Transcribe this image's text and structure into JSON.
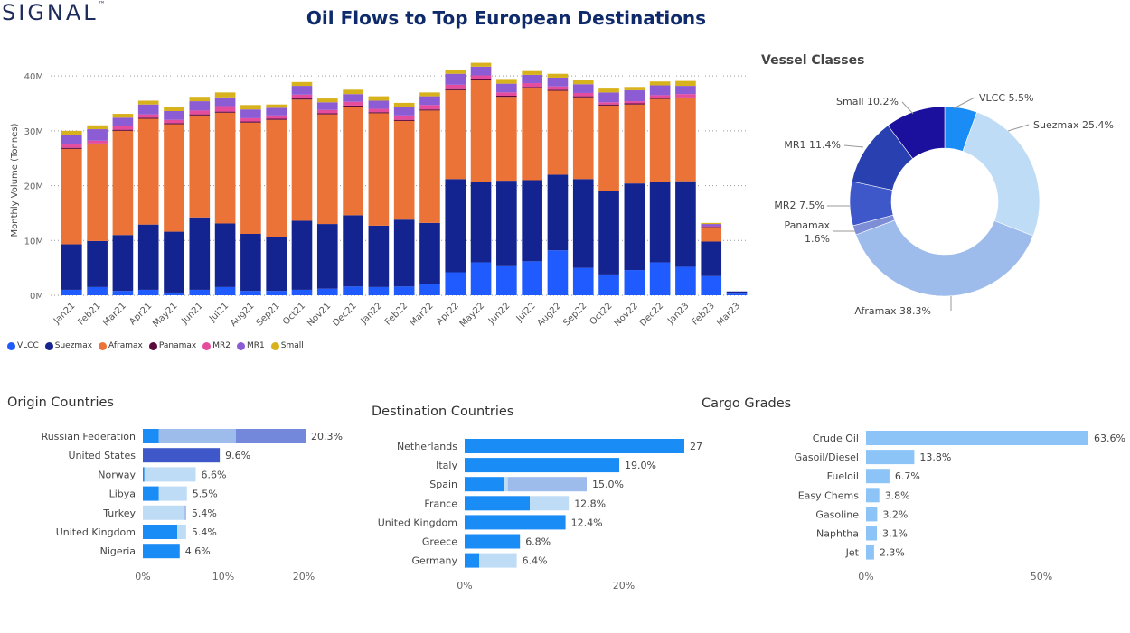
{
  "header": {
    "logo_text": "SIGNAL",
    "logo_mark": "™",
    "title": "Oil Flows to Top European Destinations"
  },
  "colors": {
    "VLCC": "#1f5bff",
    "Suezmax": "#13238f",
    "Aframax": "#eb7338",
    "Panamax": "#5b0a3d",
    "MR2": "#e64c9e",
    "MR1": "#8c5cd4",
    "Small": "#d8b21c",
    "bar_light": "#bfdcf7",
    "bar_mid": "#9dbbeb",
    "bar_blue": "#1a8cf5",
    "bar_navy": "#3f58c9",
    "bar_cargo": "#8cc4f7"
  },
  "chart_data": [
    {
      "type": "bar",
      "stacked": true,
      "title": "",
      "ylabel": "Monthly Volume (Tonnes)",
      "xlabel": "",
      "ylim": [
        0,
        42000000
      ],
      "yticks": [
        "0M",
        "10M",
        "20M",
        "30M",
        "40M"
      ],
      "grid": true,
      "legend_position": "bottom-left",
      "categories": [
        "Jan21",
        "Feb21",
        "Mar21",
        "Apr21",
        "May21",
        "Jun21",
        "Jul21",
        "Aug21",
        "Sep21",
        "Oct21",
        "Nov21",
        "Dec21",
        "Jan22",
        "Feb22",
        "Mar22",
        "Apr22",
        "May22",
        "Jun22",
        "Jul22",
        "Aug22",
        "Sep22",
        "Oct22",
        "Nov22",
        "Dec22",
        "Jan23",
        "Feb23",
        "Mar23"
      ],
      "series": [
        {
          "name": "VLCC",
          "values": [
            1.0,
            1.5,
            0.8,
            1.0,
            0.5,
            1.0,
            1.5,
            0.8,
            0.8,
            1.0,
            1.2,
            1.6,
            1.5,
            1.6,
            2.0,
            4.2,
            6.0,
            5.3,
            6.2,
            8.2,
            5.0,
            3.8,
            4.6,
            6.0,
            5.2,
            3.5,
            0.3
          ]
        },
        {
          "name": "Suezmax",
          "values": [
            8.3,
            8.4,
            10.2,
            11.9,
            11.1,
            13.2,
            11.6,
            10.4,
            9.8,
            12.6,
            11.8,
            13.0,
            11.2,
            12.2,
            11.2,
            17.0,
            14.6,
            15.6,
            14.8,
            13.8,
            16.2,
            15.2,
            15.8,
            14.6,
            15.6,
            6.3,
            0.4
          ]
        },
        {
          "name": "Aframax",
          "values": [
            17.4,
            17.6,
            19.0,
            19.3,
            19.6,
            18.6,
            20.2,
            20.3,
            21.4,
            22.1,
            20.0,
            19.8,
            20.5,
            18.0,
            20.5,
            16.2,
            18.6,
            15.3,
            16.8,
            15.3,
            14.9,
            15.6,
            14.4,
            15.2,
            15.1,
            2.6,
            0.0
          ]
        },
        {
          "name": "Panamax",
          "values": [
            0.2,
            0.2,
            0.2,
            0.2,
            0.2,
            0.2,
            0.2,
            0.2,
            0.2,
            0.2,
            0.2,
            0.2,
            0.2,
            0.2,
            0.2,
            0.2,
            0.2,
            0.2,
            0.2,
            0.2,
            0.2,
            0.2,
            0.2,
            0.2,
            0.2,
            0.1,
            0.0
          ]
        },
        {
          "name": "MR2",
          "values": [
            0.6,
            0.5,
            0.6,
            0.6,
            0.6,
            0.7,
            1.0,
            0.6,
            0.6,
            0.7,
            0.6,
            0.7,
            0.6,
            0.8,
            0.8,
            0.8,
            0.7,
            0.6,
            0.7,
            0.6,
            0.6,
            0.4,
            0.4,
            0.5,
            0.6,
            0.1,
            0.0
          ]
        },
        {
          "name": "MR1",
          "values": [
            1.8,
            2.1,
            1.6,
            1.8,
            1.6,
            1.7,
            1.6,
            1.6,
            1.4,
            1.6,
            1.4,
            1.4,
            1.5,
            1.5,
            1.6,
            2.0,
            1.6,
            1.6,
            1.5,
            1.6,
            1.6,
            1.8,
            2.0,
            1.8,
            1.5,
            0.4,
            0.0
          ]
        },
        {
          "name": "Small",
          "values": [
            0.7,
            0.7,
            0.7,
            0.7,
            0.8,
            0.8,
            0.9,
            0.8,
            0.6,
            0.7,
            0.7,
            0.8,
            0.8,
            0.8,
            0.7,
            0.7,
            0.7,
            0.7,
            0.7,
            0.7,
            0.7,
            0.7,
            0.6,
            0.7,
            0.9,
            0.2,
            0.0
          ]
        }
      ],
      "value_unit": "M"
    },
    {
      "type": "pie",
      "donut": true,
      "title": "Vessel Classes",
      "slices": [
        {
          "name": "VLCC",
          "value": 5.5,
          "label": "VLCC 5.5%",
          "color": "#1a8cf5"
        },
        {
          "name": "Suezmax",
          "value": 25.4,
          "label": "Suezmax 25.4%",
          "color": "#bfdcf7"
        },
        {
          "name": "Aframax",
          "value": 38.3,
          "label": "Aframax 38.3%",
          "color": "#9dbbeb"
        },
        {
          "name": "Panamax",
          "value": 1.6,
          "label_line1": "Panamax",
          "label_line2": "1.6%",
          "color": "#7d8ed6"
        },
        {
          "name": "MR2",
          "value": 7.5,
          "label": "MR2 7.5%",
          "color": "#3f58c9"
        },
        {
          "name": "MR1",
          "value": 11.4,
          "label": "MR1 11.4%",
          "color": "#2840b0"
        },
        {
          "name": "Small",
          "value": 10.2,
          "label": "Small 10.2%",
          "color": "#1b0f9e"
        }
      ]
    },
    {
      "type": "bar",
      "orientation": "horizontal",
      "title": "Origin Countries",
      "xlim": [
        0,
        22
      ],
      "xticks": [
        "0%",
        "10%",
        "20%"
      ],
      "rows": [
        {
          "name": "Russian Federation",
          "total": 20.3,
          "label": "20.3%",
          "segments": [
            {
              "v": 2.0,
              "c": "#1a8cf5"
            },
            {
              "v": 9.6,
              "c": "#9dbbeb"
            },
            {
              "v": 8.7,
              "c": "#7488db"
            }
          ]
        },
        {
          "name": "United States",
          "total": 9.6,
          "label": "9.6%",
          "segments": [
            {
              "v": 9.6,
              "c": "#3f58c9"
            }
          ]
        },
        {
          "name": "Norway",
          "total": 6.6,
          "label": "6.6%",
          "segments": [
            {
              "v": 0.2,
              "c": "#1a8cf5"
            },
            {
              "v": 6.4,
              "c": "#bfdcf7"
            }
          ]
        },
        {
          "name": "Libya",
          "total": 5.5,
          "label": "5.5%",
          "segments": [
            {
              "v": 2.0,
              "c": "#1a8cf5"
            },
            {
              "v": 3.5,
              "c": "#bfdcf7"
            }
          ]
        },
        {
          "name": "Turkey",
          "total": 5.4,
          "label": "5.4%",
          "segments": [
            {
              "v": 5.2,
              "c": "#bfdcf7"
            },
            {
              "v": 0.2,
              "c": "#9dbbeb"
            }
          ]
        },
        {
          "name": "United Kingdom",
          "total": 5.4,
          "label": "5.4%",
          "segments": [
            {
              "v": 4.3,
              "c": "#1a8cf5"
            },
            {
              "v": 1.1,
              "c": "#bfdcf7"
            }
          ]
        },
        {
          "name": "Nigeria",
          "total": 4.6,
          "label": "4.6%",
          "segments": [
            {
              "v": 4.6,
              "c": "#1a8cf5"
            }
          ]
        }
      ]
    },
    {
      "type": "bar",
      "orientation": "horizontal",
      "title": "Destination Countries",
      "xlim": [
        0,
        28
      ],
      "xticks": [
        "0%",
        "20%"
      ],
      "rows": [
        {
          "name": "Netherlands",
          "total": 27,
          "label": "27",
          "segments": [
            {
              "v": 27,
              "c": "#1a8cf5"
            }
          ]
        },
        {
          "name": "Italy",
          "total": 19.0,
          "label": "19.0%",
          "segments": [
            {
              "v": 19.0,
              "c": "#1a8cf5"
            }
          ]
        },
        {
          "name": "Spain",
          "total": 15.0,
          "label": "15.0%",
          "segments": [
            {
              "v": 4.8,
              "c": "#1a8cf5"
            },
            {
              "v": 0.5,
              "c": "#bfdcf7"
            },
            {
              "v": 9.7,
              "c": "#9dbbeb"
            }
          ]
        },
        {
          "name": "France",
          "total": 12.8,
          "label": "12.8%",
          "segments": [
            {
              "v": 8.0,
              "c": "#1a8cf5"
            },
            {
              "v": 4.8,
              "c": "#bfdcf7"
            }
          ]
        },
        {
          "name": "United Kingdom",
          "total": 12.4,
          "label": "12.4%",
          "segments": [
            {
              "v": 12.4,
              "c": "#1a8cf5"
            }
          ]
        },
        {
          "name": "Greece",
          "total": 6.8,
          "label": "6.8%",
          "segments": [
            {
              "v": 6.8,
              "c": "#1a8cf5"
            }
          ]
        },
        {
          "name": "Germany",
          "total": 6.4,
          "label": "6.4%",
          "segments": [
            {
              "v": 1.8,
              "c": "#1a8cf5"
            },
            {
              "v": 4.6,
              "c": "#bfdcf7"
            }
          ]
        }
      ]
    },
    {
      "type": "bar",
      "orientation": "horizontal",
      "title": "Cargo Grades",
      "xlim": [
        0,
        68
      ],
      "xticks": [
        "0%",
        "50%"
      ],
      "rows": [
        {
          "name": "Crude Oil",
          "total": 63.6,
          "label": "63.6%",
          "segments": [
            {
              "v": 63.6,
              "c": "#8cc4f7"
            }
          ]
        },
        {
          "name": "Gasoil/Diesel",
          "total": 13.8,
          "label": "13.8%",
          "segments": [
            {
              "v": 13.8,
              "c": "#8cc4f7"
            }
          ]
        },
        {
          "name": "Fueloil",
          "total": 6.7,
          "label": "6.7%",
          "segments": [
            {
              "v": 6.7,
              "c": "#8cc4f7"
            }
          ]
        },
        {
          "name": "Easy Chems",
          "total": 3.8,
          "label": "3.8%",
          "segments": [
            {
              "v": 3.8,
              "c": "#8cc4f7"
            }
          ]
        },
        {
          "name": "Gasoline",
          "total": 3.2,
          "label": "3.2%",
          "segments": [
            {
              "v": 3.2,
              "c": "#8cc4f7"
            }
          ]
        },
        {
          "name": "Naphtha",
          "total": 3.1,
          "label": "3.1%",
          "segments": [
            {
              "v": 3.1,
              "c": "#8cc4f7"
            }
          ]
        },
        {
          "name": "Jet",
          "total": 2.3,
          "label": "2.3%",
          "segments": [
            {
              "v": 2.3,
              "c": "#8cc4f7"
            }
          ]
        }
      ]
    }
  ]
}
